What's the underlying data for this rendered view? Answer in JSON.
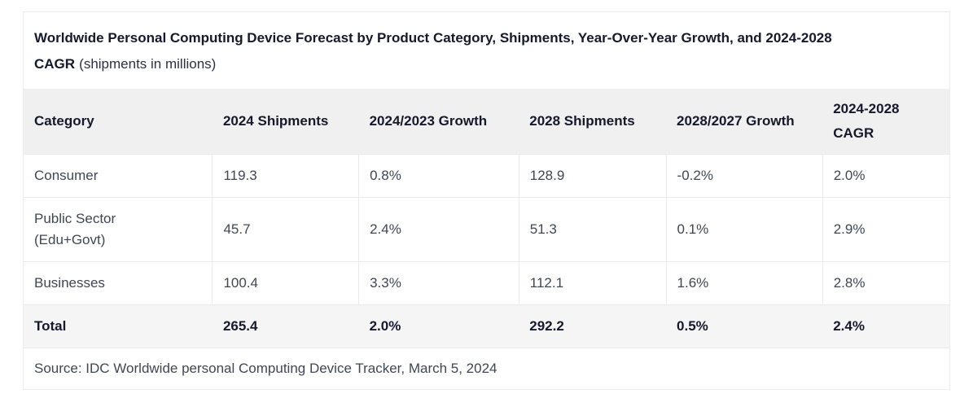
{
  "chart_data": {
    "type": "table",
    "title": "Worldwide Personal Computing Device Forecast by Product Category, Shipments, Year-Over-Year Growth, and 2024-2028 CAGR",
    "subtitle": "(shipments in millions)",
    "columns": [
      "Category",
      "2024 Shipments",
      "2024/2023 Growth",
      "2028 Shipments",
      "2028/2027 Growth",
      "2024-2028 CAGR"
    ],
    "rows": [
      {
        "cells": [
          "Consumer",
          "119.3",
          "0.8%",
          "128.9",
          "-0.2%",
          "2.0%"
        ]
      },
      {
        "cells": [
          "Public Sector\n(Edu+Govt)",
          "45.7",
          "2.4%",
          "51.3",
          "0.1%",
          "2.9%"
        ]
      },
      {
        "cells": [
          "Businesses",
          "100.4",
          "3.3%",
          "112.1",
          "1.6%",
          "2.8%"
        ]
      },
      {
        "cells": [
          "Total",
          "265.4",
          "2.0%",
          "292.2",
          "0.5%",
          "2.4%"
        ]
      }
    ],
    "total_row_index": 3,
    "source": "Source: IDC Worldwide personal Computing Device Tracker, March 5, 2024"
  },
  "colors": {
    "header_bg": "#f0f0f0",
    "total_row_bg": "#f5f5f6",
    "border": "#ebebeb",
    "title_text": "#15192b",
    "body_text": "#3f4654",
    "page_bg": "#ffffff"
  }
}
